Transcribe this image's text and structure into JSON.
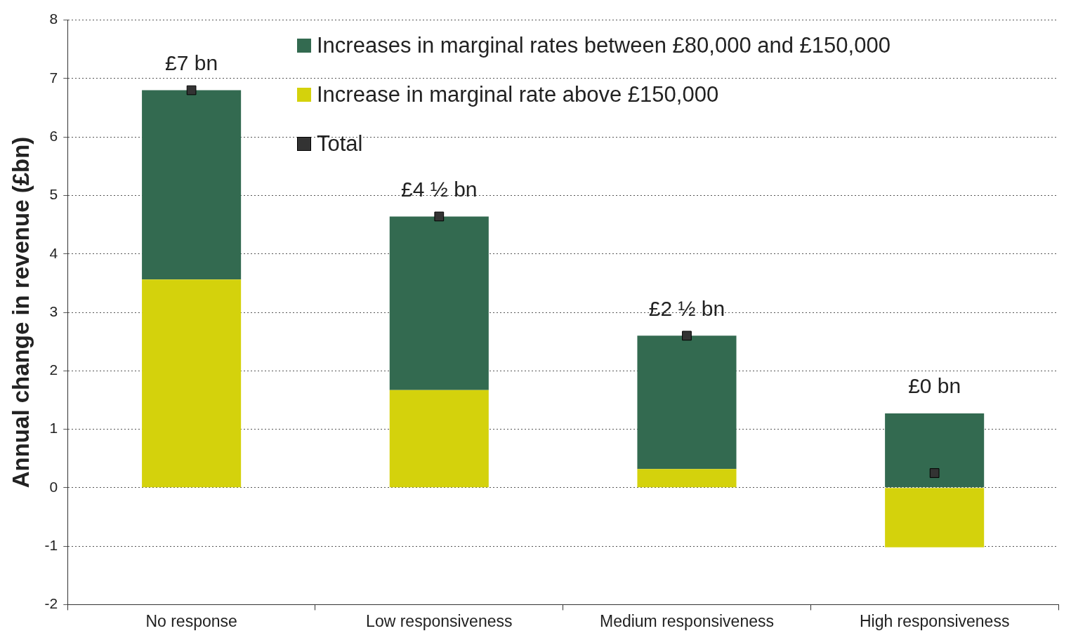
{
  "chart_data": {
    "type": "bar",
    "ylabel": "Annual change in revenue (£bn)",
    "categories": [
      "No response",
      "Low responsiveness",
      "Medium responsiveness",
      "High responsiveness"
    ],
    "series": [
      {
        "name": "Increase in marginal rate above £150,000",
        "color": "#d4d20c",
        "values": [
          3.56,
          1.67,
          0.32,
          -1.02
        ]
      },
      {
        "name": "Increases in marginal rates between £80,000 and £150,000",
        "color": "#336a50",
        "values": [
          3.24,
          2.97,
          2.28,
          1.27
        ]
      },
      {
        "name": "Total",
        "type": "scatter",
        "marker": "square",
        "color": "#333333",
        "values": [
          6.8,
          4.64,
          2.6,
          0.25
        ]
      }
    ],
    "stacked": true,
    "ylim": [
      -2,
      8
    ],
    "yticks": [
      -2,
      -1,
      0,
      1,
      2,
      3,
      4,
      5,
      6,
      7,
      8
    ],
    "grid": "y",
    "legend": "top",
    "totals": [
      "£7 bn",
      "£4 ½ bn",
      "£2 ½ bn",
      "£0 bn"
    ]
  }
}
